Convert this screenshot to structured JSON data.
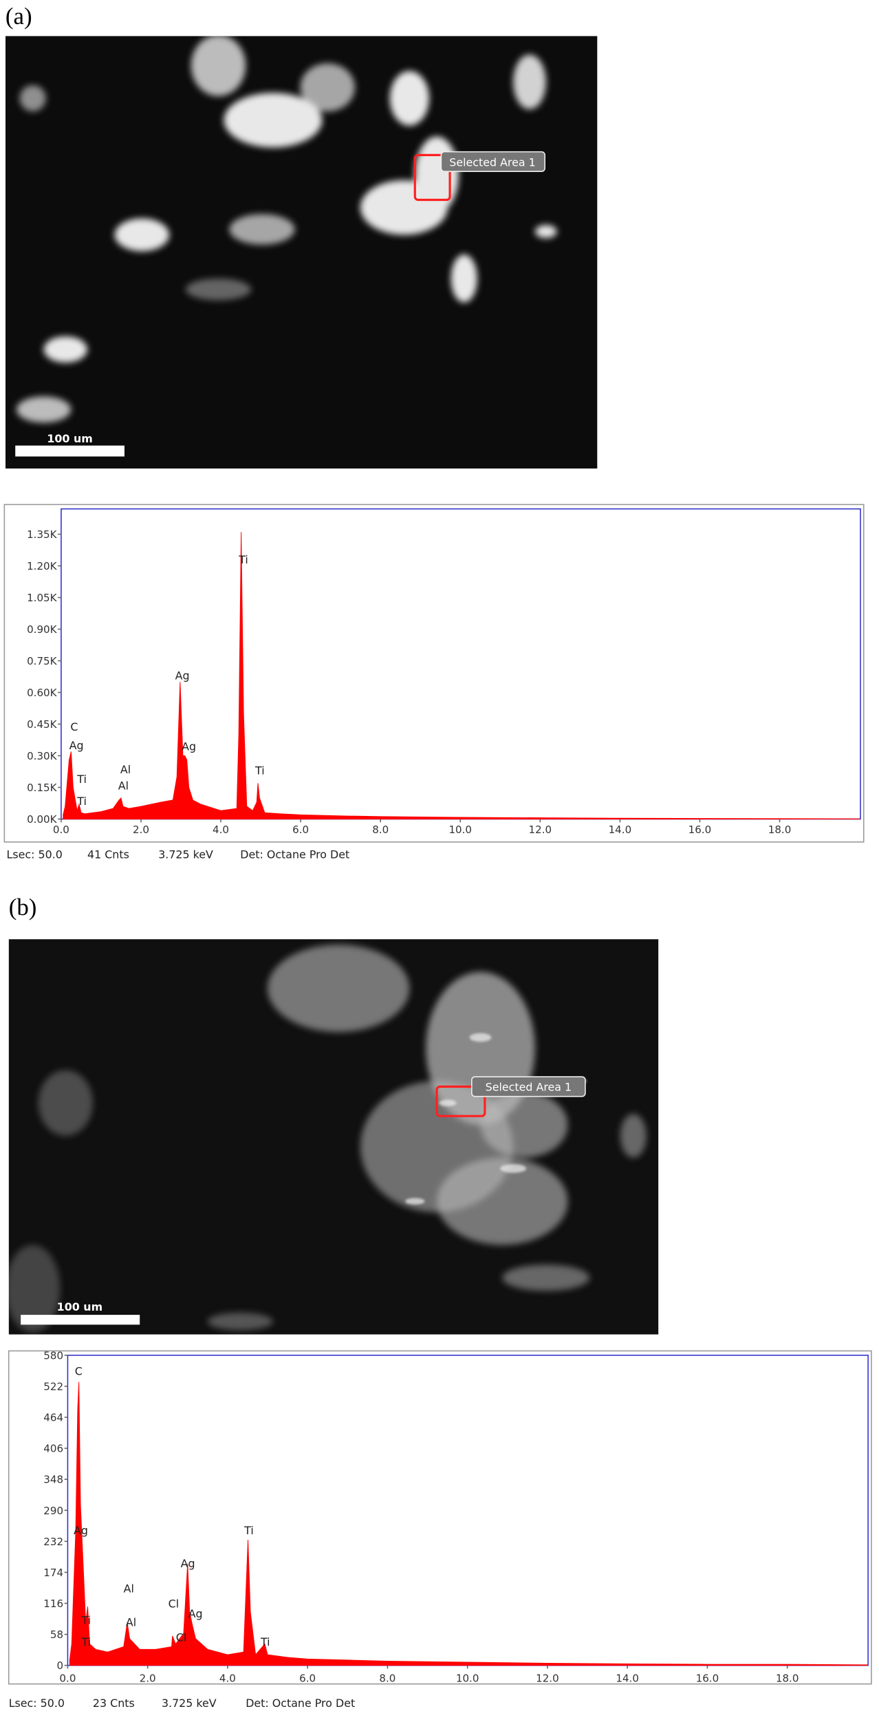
{
  "chart_data": [
    {
      "type": "area",
      "panel_label": "(a)",
      "image": {
        "scale_bar": "100 um",
        "selection": "Selected Area 1"
      },
      "x": [
        0.05,
        0.1,
        0.2,
        0.25,
        0.3,
        0.4,
        0.45,
        0.5,
        0.6,
        0.8,
        1.0,
        1.3,
        1.45,
        1.5,
        1.55,
        1.7,
        2.0,
        2.5,
        2.8,
        2.9,
        2.98,
        3.05,
        3.1,
        3.15,
        3.2,
        3.3,
        3.5,
        4.0,
        4.4,
        4.45,
        4.51,
        4.57,
        4.65,
        4.8,
        4.9,
        4.93,
        4.97,
        5.1,
        5.5,
        6,
        7,
        8,
        10,
        12,
        14,
        16,
        18,
        20
      ],
      "values": [
        20,
        60,
        280,
        320,
        150,
        40,
        70,
        30,
        25,
        30,
        35,
        50,
        90,
        100,
        60,
        50,
        60,
        80,
        90,
        200,
        650,
        300,
        300,
        280,
        150,
        90,
        70,
        40,
        50,
        400,
        1360,
        500,
        60,
        40,
        80,
        170,
        100,
        30,
        25,
        20,
        15,
        12,
        8,
        6,
        4,
        3,
        2,
        1
      ],
      "color": "#ff0000",
      "xlim": [
        0,
        20
      ],
      "xticks": [
        {
          "value": 0,
          "label": "0.0"
        },
        {
          "value": 2,
          "label": "2.0"
        },
        {
          "value": 4,
          "label": "4.0"
        },
        {
          "value": 6,
          "label": "6.0"
        },
        {
          "value": 8,
          "label": "8.0"
        },
        {
          "value": 10,
          "label": "10.0"
        },
        {
          "value": 12,
          "label": "12.0"
        },
        {
          "value": 14,
          "label": "14.0"
        },
        {
          "value": 16,
          "label": "16.0"
        },
        {
          "value": 18,
          "label": "18.0"
        }
      ],
      "ylim": [
        0,
        1470
      ],
      "yticks": [
        {
          "value": 0,
          "label": "0.00K"
        },
        {
          "value": 150,
          "label": "0.15K"
        },
        {
          "value": 300,
          "label": "0.30K"
        },
        {
          "value": 450,
          "label": "0.45K"
        },
        {
          "value": 600,
          "label": "0.60K"
        },
        {
          "value": 750,
          "label": "0.75K"
        },
        {
          "value": 900,
          "label": "0.90K"
        },
        {
          "value": 1050,
          "label": "1.05K"
        },
        {
          "value": 1200,
          "label": "1.20K"
        },
        {
          "value": 1350,
          "label": "1.35K"
        }
      ],
      "annotations": [
        "C",
        "Ag",
        "Ti",
        "Ti",
        "Al",
        "Al",
        "Ag",
        "Ag",
        "Ti",
        "Ti"
      ],
      "footer": [
        "Lsec: 50.0",
        "41 Cnts",
        "3.725 keV",
        "Det: Octane Pro Det"
      ]
    },
    {
      "type": "area",
      "panel_label": "(b)",
      "image": {
        "scale_bar": "100 um",
        "selection": "Selected Area 1"
      },
      "x": [
        0.05,
        0.1,
        0.2,
        0.25,
        0.28,
        0.32,
        0.38,
        0.45,
        0.5,
        0.55,
        0.7,
        1.0,
        1.4,
        1.49,
        1.55,
        1.8,
        2.2,
        2.6,
        2.62,
        2.7,
        2.9,
        3.0,
        3.05,
        3.12,
        3.2,
        3.5,
        4.0,
        4.4,
        4.51,
        4.57,
        4.7,
        4.93,
        5.0,
        5.5,
        6,
        7,
        8,
        10,
        12,
        14,
        16,
        18,
        20
      ],
      "values": [
        10,
        40,
        250,
        480,
        530,
        300,
        200,
        80,
        110,
        40,
        30,
        25,
        35,
        80,
        50,
        30,
        30,
        35,
        55,
        40,
        60,
        190,
        100,
        75,
        50,
        30,
        20,
        25,
        235,
        100,
        20,
        40,
        20,
        15,
        12,
        10,
        8,
        6,
        4,
        3,
        2,
        2,
        1
      ],
      "color": "#ff0000",
      "xlim": [
        0,
        20
      ],
      "xticks": [
        {
          "value": 0,
          "label": "0.0"
        },
        {
          "value": 2,
          "label": "2.0"
        },
        {
          "value": 4,
          "label": "4.0"
        },
        {
          "value": 6,
          "label": "6.0"
        },
        {
          "value": 8,
          "label": "8.0"
        },
        {
          "value": 10,
          "label": "10.0"
        },
        {
          "value": 12,
          "label": "12.0"
        },
        {
          "value": 14,
          "label": "14.0"
        },
        {
          "value": 16,
          "label": "16.0"
        },
        {
          "value": 18,
          "label": "18.0"
        }
      ],
      "ylim": [
        0,
        580
      ],
      "yticks": [
        0,
        58,
        116,
        174,
        232,
        290,
        348,
        406,
        464,
        522,
        580
      ],
      "annotations": [
        "C",
        "Ag",
        "Ti",
        "Ti",
        "Al",
        "Al",
        "Cl",
        "Cl",
        "Ag",
        "Ag",
        "Ti",
        "Ti"
      ],
      "footer": [
        "Lsec: 50.0",
        "23 Cnts",
        "3.725 keV",
        "Det: Octane Pro Det"
      ]
    }
  ]
}
